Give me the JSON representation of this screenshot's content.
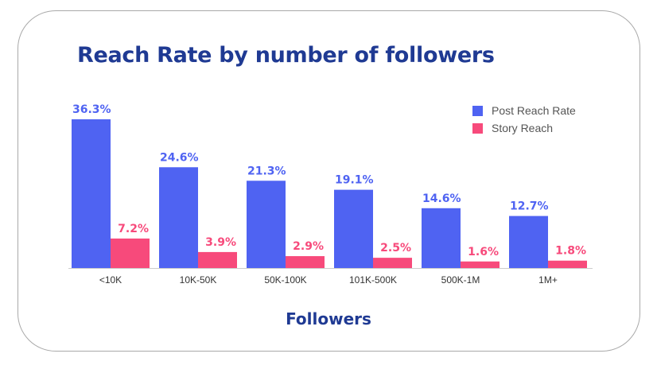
{
  "chart_data": {
    "type": "bar",
    "title": "Reach Rate by number of followers",
    "xlabel": "Followers",
    "ylabel": "",
    "categories": [
      "<10K",
      "10K-50K",
      "50K-100K",
      "101K-500K",
      "500K-1M",
      "1M+"
    ],
    "series": [
      {
        "name": "Post Reach Rate",
        "values": [
          36.3,
          24.6,
          21.3,
          19.1,
          14.6,
          12.7
        ],
        "labels": [
          "36.3%",
          "24.6%",
          "21.3%",
          "19.1%",
          "14.6%",
          "12.7%"
        ]
      },
      {
        "name": "Story Reach",
        "values": [
          7.2,
          3.9,
          2.9,
          2.5,
          1.6,
          1.8
        ],
        "labels": [
          "7.2%",
          "3.9%",
          "2.9%",
          "2.5%",
          "1.6%",
          "1.8%"
        ]
      }
    ],
    "ylim": [
      0,
      36.3
    ],
    "grid": false,
    "legend_position": "top-right",
    "colors": {
      "post": "#4f63f2",
      "story": "#f74a7b"
    }
  }
}
